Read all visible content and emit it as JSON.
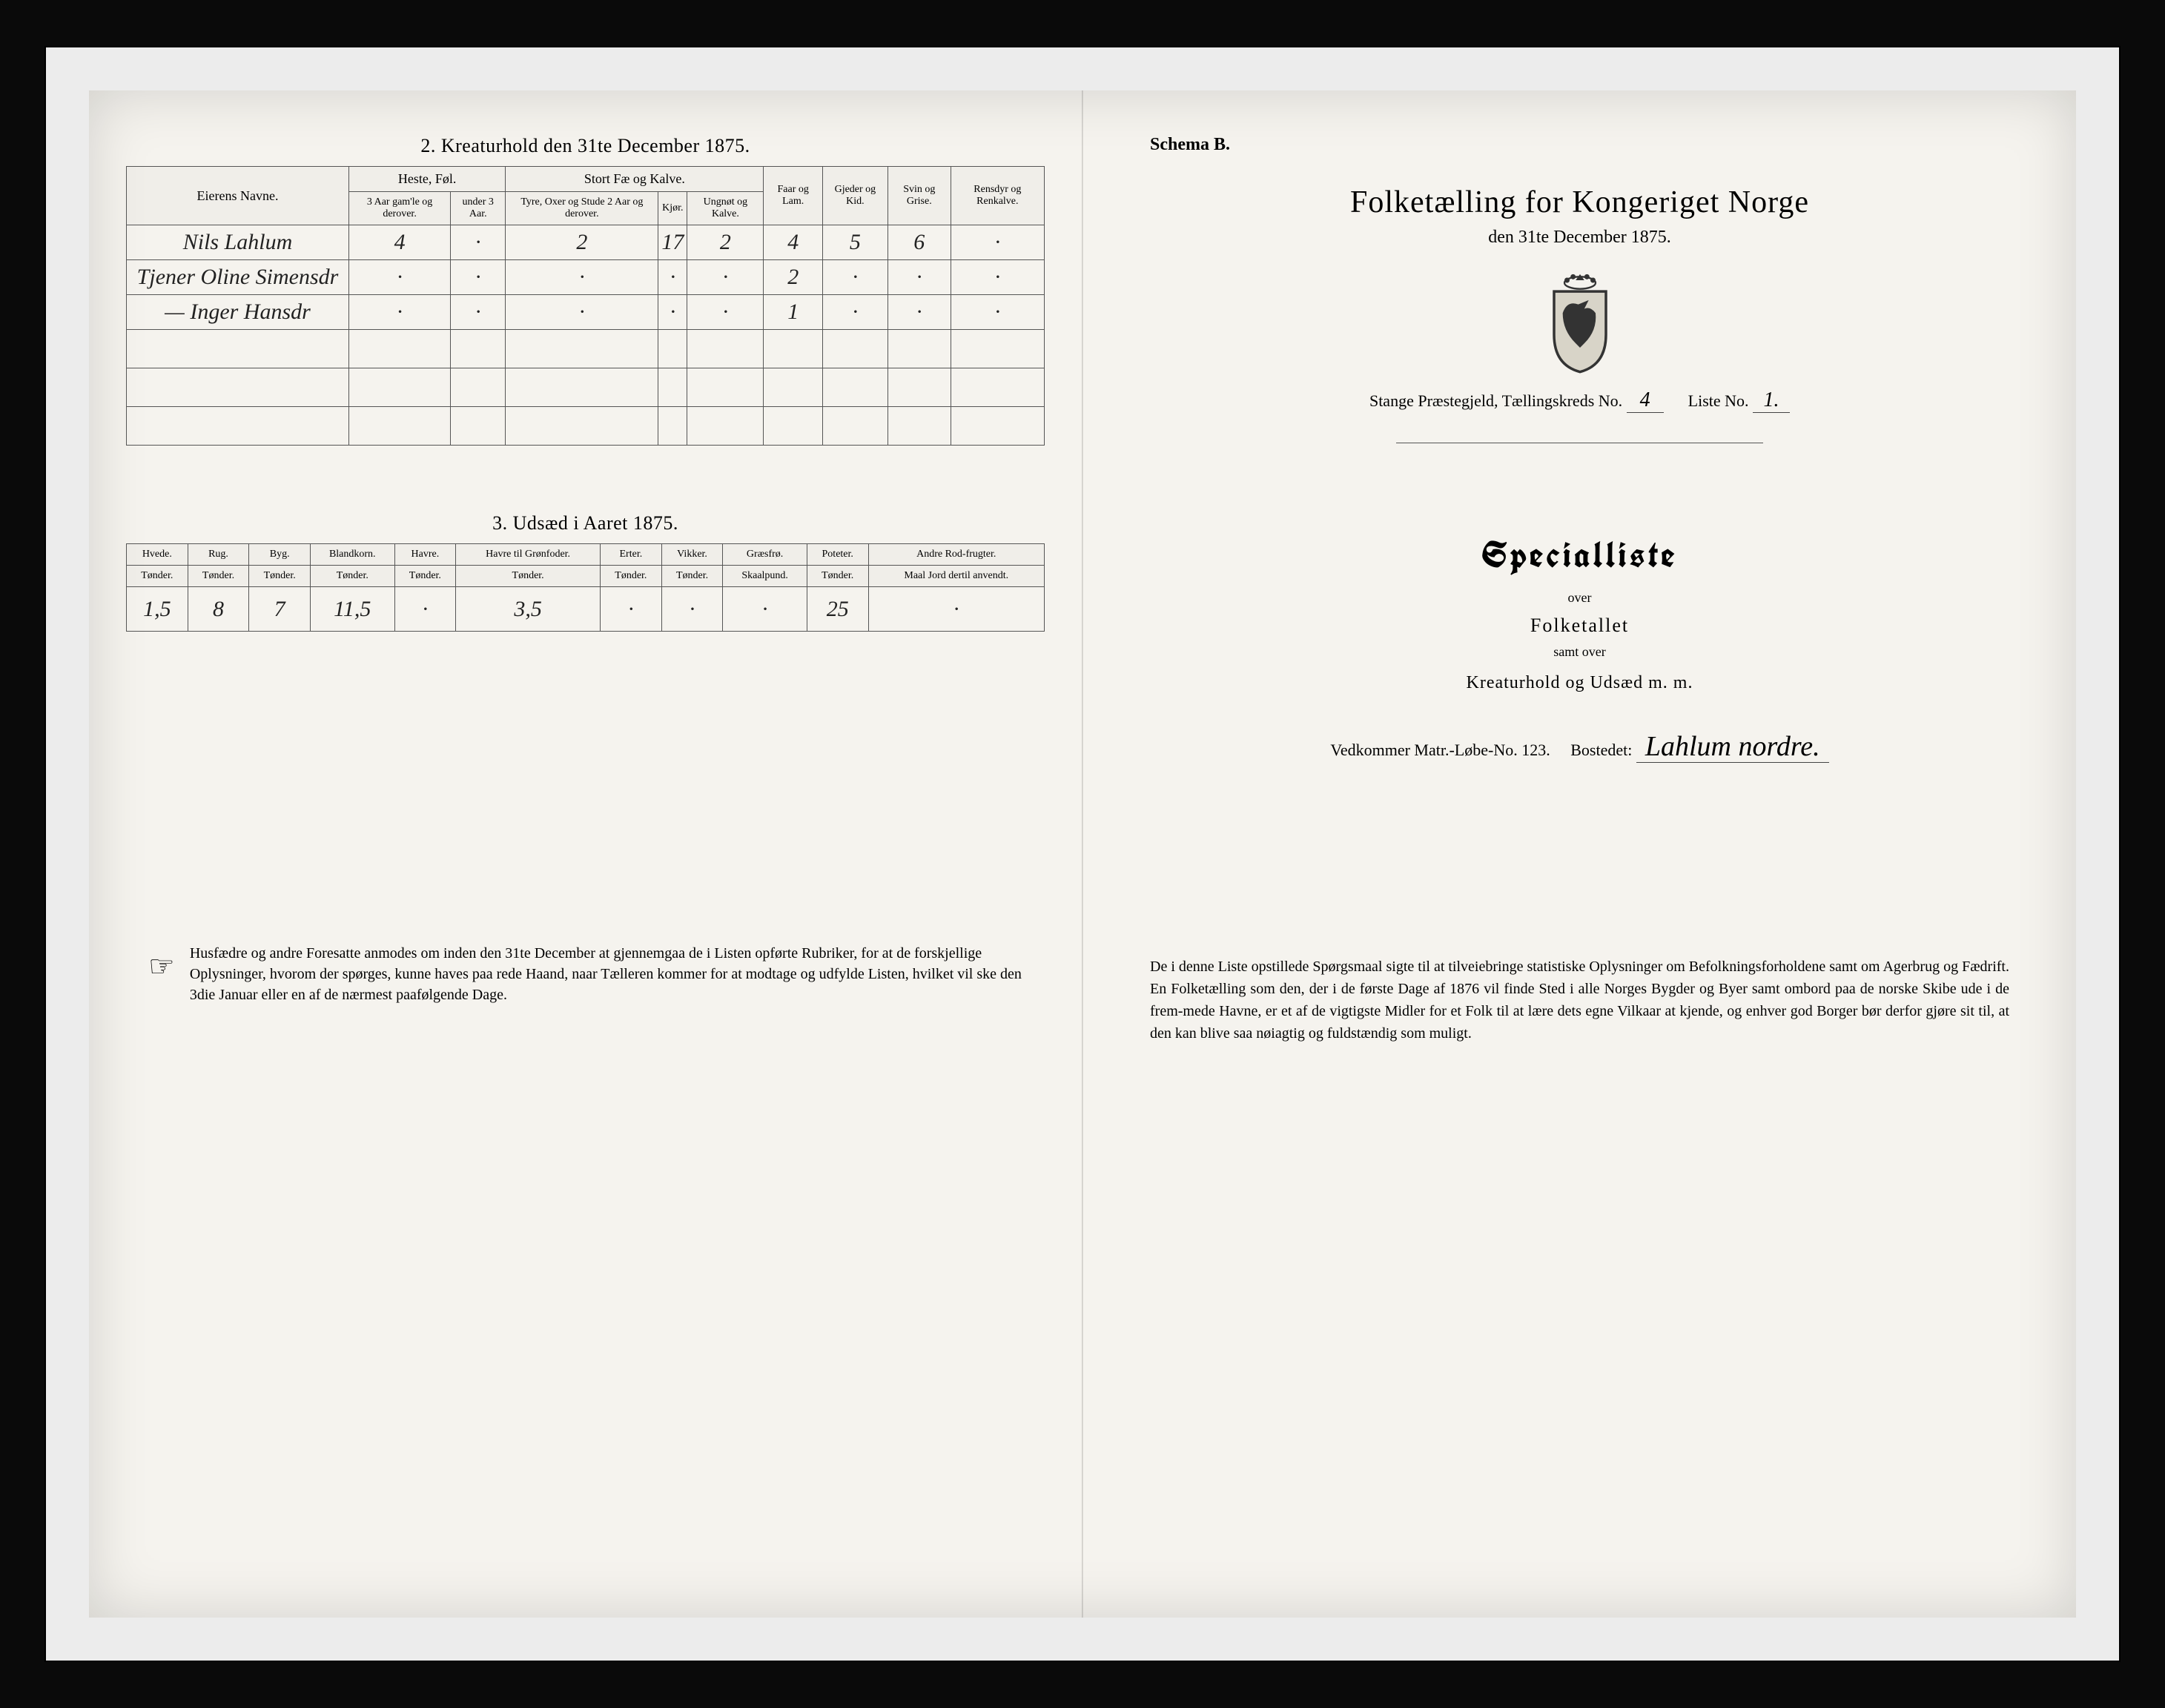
{
  "left": {
    "section2_title": "2.  Kreaturhold den 31te December 1875.",
    "t2": {
      "owner_header": "Eierens Navne.",
      "group_heste": "Heste, Føl.",
      "group_storfe": "Stort Fæ og Kalve.",
      "col_faar": "Faar og Lam.",
      "col_gjeder": "Gjeder og Kid.",
      "col_svin": "Svin og Grise.",
      "col_ren": "Rensdyr og Renkalve.",
      "sub_h1": "3 Aar gam'le og derover.",
      "sub_h2": "under 3 Aar.",
      "sub_s1": "Tyre, Oxer og Stude 2 Aar og derover.",
      "sub_s2": "Kjør.",
      "sub_s3": "Ungnøt og Kalve.",
      "rows": [
        {
          "owner": "Nils Lahlum",
          "c": [
            "4",
            "·",
            "2",
            "17",
            "2",
            "4",
            "5",
            "6",
            "·"
          ]
        },
        {
          "owner": "Tjener Oline Simensdr",
          "c": [
            "·",
            "·",
            "·",
            "·",
            "·",
            "2",
            "·",
            "·",
            "·"
          ]
        },
        {
          "owner": "— Inger Hansdr",
          "c": [
            "·",
            "·",
            "·",
            "·",
            "·",
            "1",
            "·",
            "·",
            "·"
          ]
        }
      ]
    },
    "section3_title": "3.  Udsæd i Aaret 1875.",
    "t3": {
      "headers": [
        "Hvede.",
        "Rug.",
        "Byg.",
        "Blandkorn.",
        "Havre.",
        "Havre til Grønfoder.",
        "Erter.",
        "Vikker.",
        "Græsfrø.",
        "Poteter.",
        "Andre Rod-frugter."
      ],
      "sub": [
        "Tønder.",
        "Tønder.",
        "Tønder.",
        "Tønder.",
        "Tønder.",
        "Tønder.",
        "Tønder.",
        "Tønder.",
        "Skaalpund.",
        "Tønder.",
        "Maal Jord dertil anvendt."
      ],
      "row": [
        "1,5",
        "8",
        "7",
        "11,5",
        "·",
        "3,5",
        "·",
        "·",
        "·",
        "25",
        "·"
      ]
    },
    "footnote": "Husfædre og andre Foresatte anmodes om inden den 31te December at gjennemgaa de i Listen opførte Rubriker, for at de forskjellige Oplysninger, hvorom der spørges, kunne haves paa rede Haand, naar Tælleren kommer for at modtage og udfylde Listen, hvilket vil ske den 3die Januar eller en af de nærmest paafølgende Dage."
  },
  "right": {
    "schema": "Schema B.",
    "main_title": "Folketælling for Kongeriget Norge",
    "sub_title": "den 31te December 1875.",
    "parish_label": "Stange Præstegjeld,  Tællingskreds No.",
    "kreds_no": "4",
    "liste_label": "Liste No.",
    "liste_no": "1.",
    "special": "Specialliste",
    "over": "over",
    "folketallet": "Folketallet",
    "samt_over": "samt over",
    "kreatur": "Kreaturhold og Udsæd m. m.",
    "matr_label": "Vedkommer Matr.-Løbe-No.",
    "matr_no": "123.",
    "bosted_label": "Bostedet:",
    "bosted": "Lahlum nordre.",
    "footnote": "De i denne Liste opstillede Spørgsmaal sigte til at tilveiebringe statistiske Oplysninger om Befolkningsforholdene samt om Agerbrug og Fædrift.  En Folketælling som den, der i de første Dage af 1876 vil finde Sted i alle Norges Bygder og Byer samt ombord paa de norske Skibe ude i de frem-mede Havne, er et af de vigtigste Midler for et Folk til at lære dets egne Vilkaar at kjende, og enhver god Borger bør derfor gjøre sit til, at den kan blive saa nøiagtig og fuldstændig som muligt."
  }
}
